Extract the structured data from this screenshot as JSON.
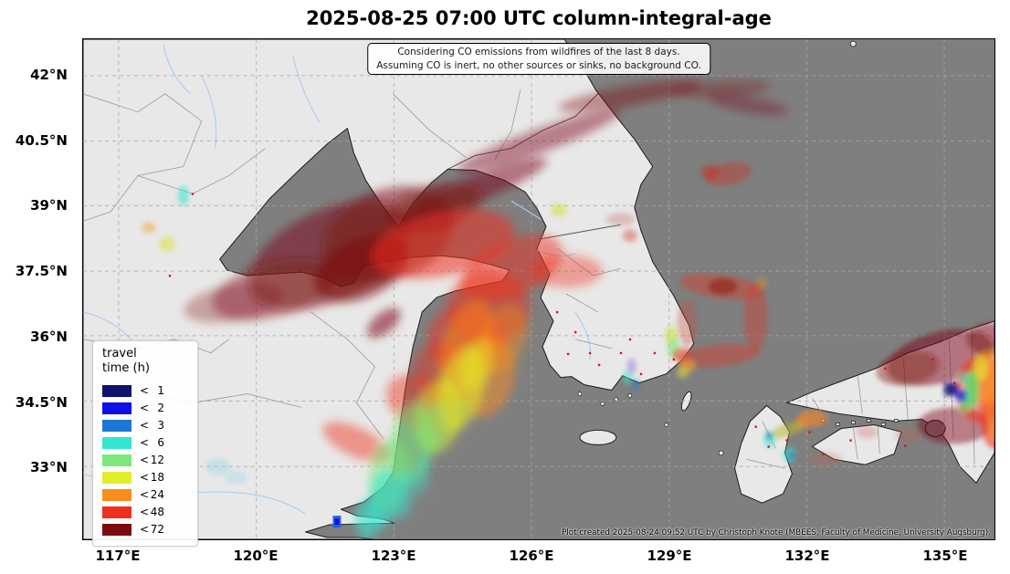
{
  "title": "2025-08-25 07:00 UTC column-integral-age",
  "note": {
    "line1": "Considering CO emissions from wildfires of the last 8 days.",
    "line2": "Assuming CO is inert, no other sources or sinks, no background CO."
  },
  "axes": {
    "y_ticks": [
      "42°N",
      "40.5°N",
      "39°N",
      "37.5°N",
      "36°N",
      "34.5°N",
      "33°N"
    ],
    "x_ticks": [
      "117°E",
      "120°E",
      "123°E",
      "126°E",
      "129°E",
      "132°E",
      "135°E"
    ]
  },
  "legend": {
    "title_line1": "travel",
    "title_line2": "time (h)",
    "items": [
      {
        "label_prefix": "<",
        "label_value": "1",
        "color": "#10106e"
      },
      {
        "label_prefix": "<",
        "label_value": "2",
        "color": "#0f0fe8"
      },
      {
        "label_prefix": "<",
        "label_value": "3",
        "color": "#1e78d2"
      },
      {
        "label_prefix": "<",
        "label_value": "6",
        "color": "#33e6cf"
      },
      {
        "label_prefix": "<",
        "label_value": "12",
        "color": "#7ce87b"
      },
      {
        "label_prefix": "<",
        "label_value": "18",
        "color": "#e0ee2b"
      },
      {
        "label_prefix": "<",
        "label_value": "24",
        "color": "#fb8d1e"
      },
      {
        "label_prefix": "<",
        "label_value": "48",
        "color": "#ee2f1d"
      },
      {
        "label_prefix": "<",
        "label_value": "72",
        "color": "#7c0b10"
      }
    ]
  },
  "credit": "Plot created 2025-08-24 09:52 UTC by Christoph Knote (MBEES, Faculty of Medicine, University Augsburg).",
  "chart_data": {
    "type": "map",
    "title": "2025-08-25 07:00 UTC column-integral-age",
    "region": "East Asia (Bohai Sea, Yellow Sea, Korea, Sea of Japan, western Japan)",
    "x_range_deg_east": [
      116.2,
      136.1
    ],
    "y_range_deg_north": [
      31.3,
      42.8
    ],
    "grid": "dashed graticule every 3 deg lon / 1.5 deg lat",
    "legend_bins_hours": [
      1,
      2,
      3,
      6,
      12,
      18,
      24,
      48,
      72
    ],
    "features": [
      "dark-red aged CO plume (<72h) over Bohai Sea / Liaoning with streak NE across NE China",
      "bright red (<48h) band across northern Yellow Sea toward Korea Bay curving south",
      "orange-yellow-green-cyan age gradient tail to fresh source near Yangtze estuary / Shanghai",
      "red circular eddy east of Korean peninsula",
      "small red patch in Sea of Japan",
      "fresh multicolour fire plume (blue core) near Osaka, western Japan",
      "scattered small fire pixels over Korea and southwest Japan"
    ],
    "map_colors": {
      "sea": "#7f7f7f",
      "land": "#e9e8e8"
    }
  }
}
